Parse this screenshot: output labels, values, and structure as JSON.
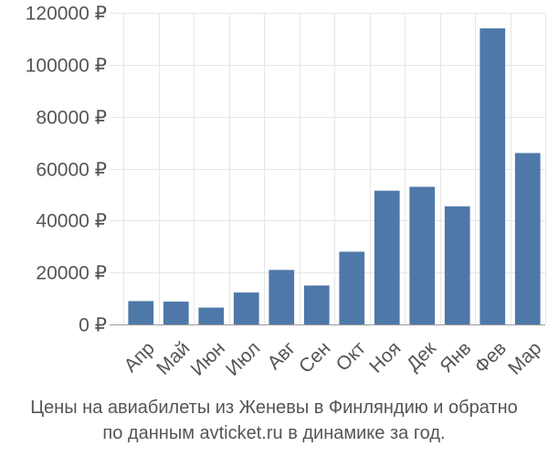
{
  "chart_data": {
    "type": "bar",
    "categories": [
      "Апр",
      "Май",
      "Июн",
      "Июл",
      "Авг",
      "Сен",
      "Окт",
      "Ноя",
      "Дек",
      "Янв",
      "Фев",
      "Мар"
    ],
    "values": [
      9000,
      8800,
      6500,
      12300,
      21000,
      15000,
      28000,
      51500,
      53000,
      45500,
      114000,
      66000
    ],
    "ylim": [
      0,
      120000
    ],
    "yticks": [
      0,
      20000,
      40000,
      60000,
      80000,
      100000,
      120000
    ],
    "ytick_labels": [
      "0 ₽",
      "20000 ₽",
      "40000 ₽",
      "60000 ₽",
      "80000 ₽",
      "100000 ₽",
      "120000 ₽"
    ],
    "grid": true,
    "bar_color": "#4e78a8"
  },
  "caption": {
    "line1": "Цены на авиабилеты из Женевы в Финляндию и обратно",
    "line2": "по данным avticket.ru в динамике за год."
  }
}
